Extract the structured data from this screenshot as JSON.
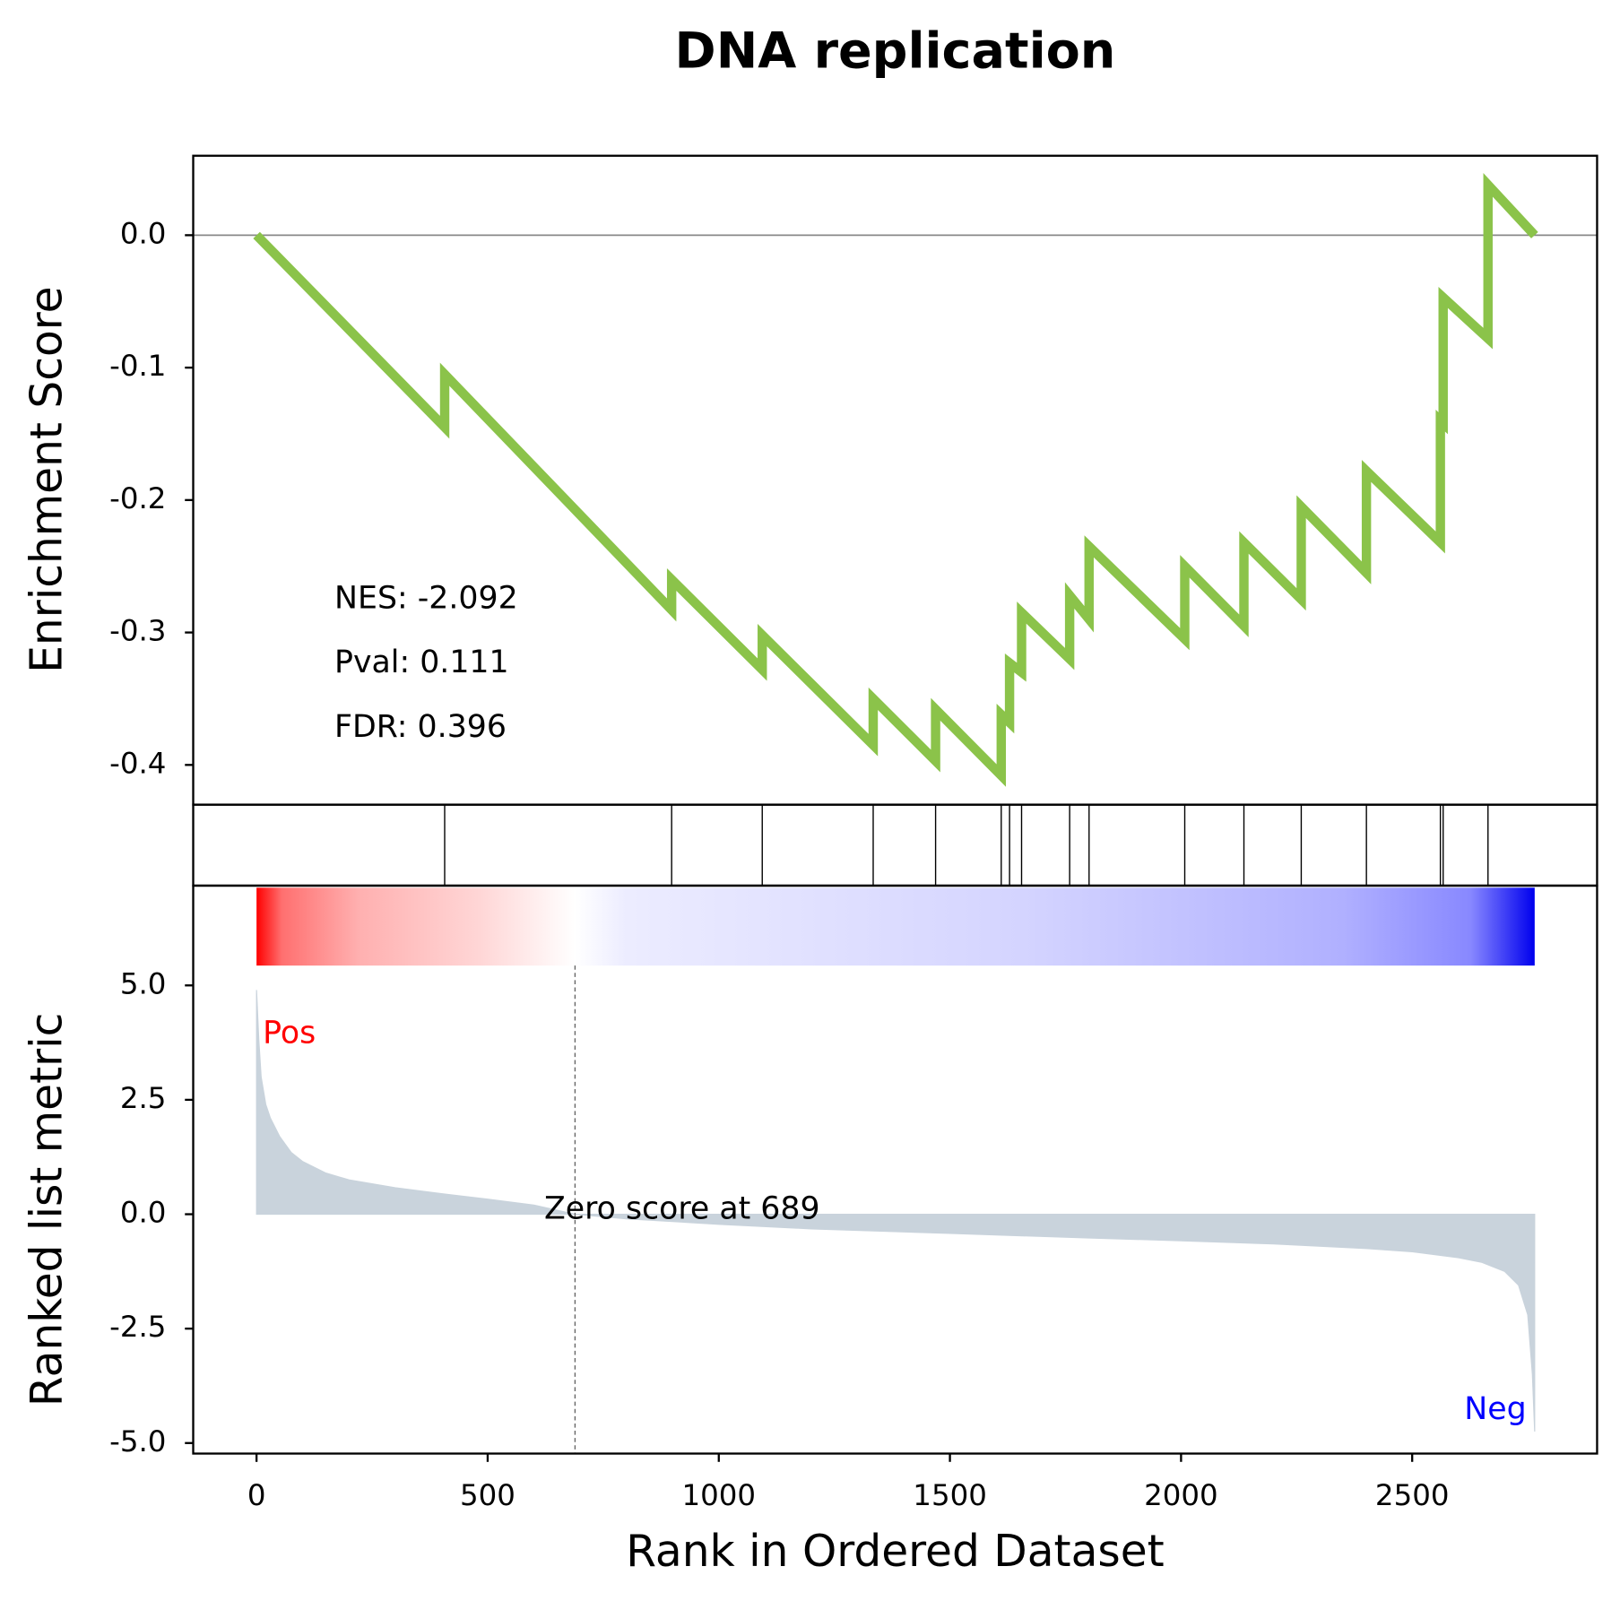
{
  "chart_data": {
    "type": "line",
    "title": "DNA replication",
    "x_label": "Rank in Ordered Dataset",
    "xlim": [
      -137,
      2900
    ],
    "xticks": [
      0,
      500,
      1000,
      1500,
      2000,
      2500
    ],
    "es_panel": {
      "y_label": "Enrichment Score",
      "ylim": [
        -0.43,
        0.06
      ],
      "yticks": [
        {
          "value": 0,
          "label": "0.0"
        },
        {
          "value": -0.1,
          "label": "-0.1"
        },
        {
          "value": -0.2,
          "label": "-0.2"
        },
        {
          "value": -0.3,
          "label": "-0.3"
        },
        {
          "value": -0.4,
          "label": "-0.4"
        }
      ],
      "color": "#8bc34a",
      "x": [
        0,
        407,
        407,
        898,
        898,
        1094,
        1094,
        1334,
        1334,
        1469,
        1469,
        1611,
        1611,
        1629,
        1629,
        1655,
        1655,
        1759,
        1759,
        1801,
        1801,
        2008,
        2008,
        2136,
        2136,
        2260,
        2260,
        2401,
        2401,
        2561,
        2561,
        2567,
        2567,
        2664,
        2664,
        2765
      ],
      "y": [
        0,
        -0.145,
        -0.105,
        -0.283,
        -0.26,
        -0.328,
        -0.302,
        -0.385,
        -0.35,
        -0.397,
        -0.358,
        -0.408,
        -0.362,
        -0.368,
        -0.323,
        -0.33,
        -0.285,
        -0.32,
        -0.272,
        -0.29,
        -0.235,
        -0.305,
        -0.25,
        -0.295,
        -0.232,
        -0.275,
        -0.205,
        -0.255,
        -0.178,
        -0.232,
        -0.14,
        -0.142,
        -0.047,
        -0.078,
        0.038,
        0
      ],
      "annotations": [
        "NES: -2.092",
        "Pval: 0.111",
        "FDR: 0.396"
      ]
    },
    "hits": [
      407,
      898,
      1094,
      1334,
      1469,
      1611,
      1629,
      1655,
      1759,
      1801,
      2008,
      2136,
      2260,
      2401,
      2561,
      2567,
      2664
    ],
    "metric_panel": {
      "y_label": "Ranked list metric",
      "ylim": [
        -5.23,
        7.18
      ],
      "yticks": [
        {
          "value": 5,
          "label": "5.0"
        },
        {
          "value": 2.5,
          "label": "2.5"
        },
        {
          "value": 0,
          "label": "0.0"
        },
        {
          "value": -2.5,
          "label": "-2.5"
        },
        {
          "value": -5,
          "label": "-5.0"
        }
      ],
      "color": "#c9d3dc",
      "x": [
        0,
        5,
        10,
        20,
        30,
        50,
        75,
        100,
        150,
        200,
        300,
        400,
        500,
        600,
        689,
        800,
        1000,
        1200,
        1500,
        1800,
        2000,
        2200,
        2400,
        2500,
        2600,
        2650,
        2700,
        2730,
        2750,
        2760,
        2765
      ],
      "values": [
        4.9,
        3.8,
        3.0,
        2.4,
        2.1,
        1.7,
        1.35,
        1.15,
        0.9,
        0.75,
        0.58,
        0.45,
        0.33,
        0.2,
        0,
        -0.1,
        -0.22,
        -0.32,
        -0.42,
        -0.52,
        -0.58,
        -0.65,
        -0.75,
        -0.82,
        -0.95,
        -1.05,
        -1.25,
        -1.55,
        -2.2,
        -3.5,
        -4.75
      ],
      "pos_label": "Pos",
      "neg_label": "Neg",
      "zero_annotation": "Zero score at 689",
      "zero_rank": 689
    }
  }
}
